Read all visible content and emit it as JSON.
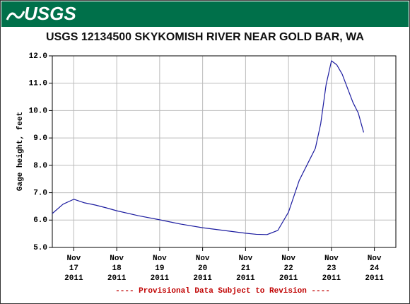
{
  "header": {
    "logo": "USGS"
  },
  "chart_data": {
    "type": "line",
    "title": "USGS 12134500 SKYKOMISH RIVER NEAR GOLD BAR, WA",
    "y_label": "Gage height, feet",
    "annotation": "---- Provisional Data Subject to Revision ----",
    "grid": true,
    "x": [
      "2011-11-16T12:00",
      "2011-11-16T18:00",
      "2011-11-17T00:00",
      "2011-11-17T06:00",
      "2011-11-17T12:00",
      "2011-11-17T18:00",
      "2011-11-18T00:00",
      "2011-11-18T12:00",
      "2011-11-19T00:00",
      "2011-11-19T12:00",
      "2011-11-20T00:00",
      "2011-11-20T12:00",
      "2011-11-21T00:00",
      "2011-11-21T06:00",
      "2011-11-21T12:00",
      "2011-11-21T18:00",
      "2011-11-22T00:00",
      "2011-11-22T06:00",
      "2011-11-22T12:00",
      "2011-11-22T15:00",
      "2011-11-22T18:00",
      "2011-11-22T21:00",
      "2011-11-23T00:00",
      "2011-11-23T03:00",
      "2011-11-23T06:00",
      "2011-11-23T12:00",
      "2011-11-23T15:00",
      "2011-11-23T18:00"
    ],
    "series": [
      {
        "color": "#1c1ca0",
        "values": [
          6.24,
          6.58,
          6.76,
          6.63,
          6.55,
          6.45,
          6.34,
          6.16,
          6.01,
          5.85,
          5.72,
          5.62,
          5.52,
          5.48,
          5.47,
          5.62,
          6.29,
          7.45,
          8.23,
          8.62,
          9.52,
          10.94,
          11.82,
          11.67,
          11.33,
          10.3,
          9.91,
          9.2
        ]
      }
    ],
    "xlim": [
      "2011-11-16T12:00",
      "2011-11-24T12:00"
    ],
    "xticks": [
      {
        "value": "2011-11-17T00:00",
        "label": "Nov\n17\n2011"
      },
      {
        "value": "2011-11-18T00:00",
        "label": "Nov\n18\n2011"
      },
      {
        "value": "2011-11-19T00:00",
        "label": "Nov\n19\n2011"
      },
      {
        "value": "2011-11-20T00:00",
        "label": "Nov\n20\n2011"
      },
      {
        "value": "2011-11-21T00:00",
        "label": "Nov\n21\n2011"
      },
      {
        "value": "2011-11-22T00:00",
        "label": "Nov\n22\n2011"
      },
      {
        "value": "2011-11-23T00:00",
        "label": "Nov\n23\n2011"
      },
      {
        "value": "2011-11-24T00:00",
        "label": "Nov\n24\n2011"
      }
    ],
    "ylim": [
      5,
      12
    ],
    "yticks": [
      {
        "value": 5,
        "label": "5.0"
      },
      {
        "value": 6,
        "label": "6.0"
      },
      {
        "value": 7,
        "label": "7.0"
      },
      {
        "value": 8,
        "label": "8.0"
      },
      {
        "value": 9,
        "label": "9.0"
      },
      {
        "value": 10,
        "label": "10.0"
      },
      {
        "value": 11,
        "label": "11.0"
      },
      {
        "value": 12,
        "label": "12.0"
      }
    ]
  }
}
